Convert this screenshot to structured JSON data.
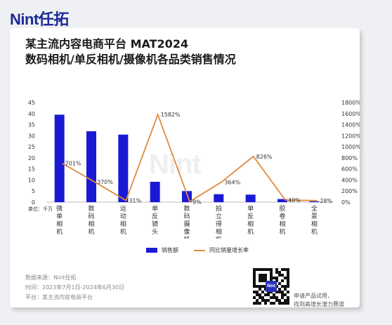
{
  "brand": {
    "logo_text": "Nint任拓"
  },
  "title": {
    "line1": "某主流内容电商平台 MAT2024",
    "line2": "数码相机/单反相机/摄像机各品类销售情况"
  },
  "watermark": "Nint",
  "unit_label": "单位：千万",
  "legend": {
    "bar": "销售额",
    "line": "同比销量增长率"
  },
  "source": {
    "line1": "数据来源：Nint任拓",
    "line2": "时间：2023年7月1日-2024年6月30日",
    "line3": "平台：某主流内容电商平台"
  },
  "qr": {
    "logo_text": "Nint"
  },
  "cta": {
    "line1": "申请产品试用，",
    "line2": "找到高增长潜力赛道"
  },
  "colors": {
    "bar": "#1a1ad6",
    "line": "#e08a3c",
    "brand": "#1d2b93"
  },
  "chart_data": {
    "type": "bar",
    "categories": [
      "微单相机",
      "数码相机",
      "运动相机",
      "单反镜头",
      "数码摄像机",
      "拍立得相机",
      "单反相机",
      "胶卷相机",
      "全景相机"
    ],
    "series": [
      {
        "name": "销售额",
        "type": "bar",
        "axis": "left",
        "values": [
          39.5,
          32,
          30.5,
          9.2,
          5,
          3.6,
          3.4,
          1.4,
          0.4
        ]
      },
      {
        "name": "同比销量增长率",
        "type": "line",
        "axis": "right",
        "values": [
          701,
          370,
          31,
          1582,
          9,
          364,
          826,
          40,
          28
        ],
        "labels": [
          "701%",
          "370%",
          "31%",
          "1582%",
          "9%",
          "364%",
          "826%",
          "40%",
          "28%"
        ]
      }
    ],
    "y_left": {
      "min": 0,
      "max": 45,
      "ticks": [
        "0",
        "5",
        "10",
        "15",
        "20",
        "25",
        "30",
        "35",
        "40",
        "45"
      ]
    },
    "y_right": {
      "min": 0,
      "max": 1800,
      "ticks": [
        "0%",
        "200%",
        "400%",
        "600%",
        "800%",
        "1000%",
        "1200%",
        "1400%",
        "1600%",
        "1800%"
      ]
    },
    "grid": false,
    "legend_position": "bottom"
  }
}
